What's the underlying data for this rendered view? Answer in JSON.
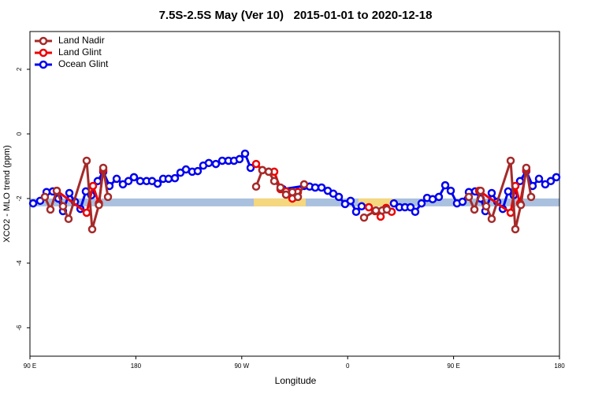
{
  "chart_data": {
    "type": "line",
    "title": "7.5S-2.5S May (Ver 10)   2015-01-01 to 2020-12-18",
    "x_label": "Longitude",
    "y_label": "XCO2 - MLO trend (ppm)",
    "xlim": [
      90,
      540
    ],
    "ylim": [
      -6.88,
      3.17
    ],
    "xticks": [
      {
        "value": 90,
        "label": "90 E"
      },
      {
        "value": 180,
        "label": "180"
      },
      {
        "value": 270,
        "label": "90 W"
      },
      {
        "value": 360,
        "label": "0"
      },
      {
        "value": 450,
        "label": "90 E"
      },
      {
        "value": 540,
        "label": "180"
      }
    ],
    "yticks": [
      2,
      0,
      -2,
      -4,
      -6
    ],
    "legend": "top-left",
    "bands": [
      {
        "value": -2.12,
        "xlim": [
          90,
          540
        ],
        "color": "#a9c0de"
      },
      {
        "value": -2.12,
        "xlim": [
          280.2,
          324.4
        ],
        "color": "#f5d77e"
      },
      {
        "value": -2.12,
        "xlim": [
          369.2,
          399.3
        ],
        "color": "#f5d77e"
      }
    ],
    "series": [
      {
        "name": "Land Nadir",
        "color": "#a52a2a",
        "x": [
          102.7,
          107.4,
          112.8,
          118.1,
          122.8,
          138.2,
          142.9,
          148.6,
          152.3,
          156.3,
          null,
          282.2,
          287.5,
          292.9,
          297.6,
          302.9,
          307.6,
          313.0,
          317.7,
          323.0,
          null,
          373.9,
          384.0,
          389.3,
          393.3,
          null,
          463.0,
          467.7,
          473.0,
          477.7,
          482.4,
          498.5,
          502.5,
          507.2,
          511.8,
          515.9
        ],
        "values": [
          -1.95,
          -2.34,
          -1.76,
          -2.24,
          -2.63,
          -0.83,
          -2.95,
          -2.2,
          -1.05,
          -1.95,
          null,
          -1.63,
          -1.12,
          -1.17,
          -1.46,
          -1.66,
          -1.88,
          -1.8,
          -1.95,
          -1.56,
          null,
          -2.59,
          -2.37,
          -2.37,
          -2.34,
          null,
          -1.95,
          -2.34,
          -1.76,
          -2.24,
          -2.63,
          -0.83,
          -2.95,
          -2.2,
          -1.05,
          -1.95
        ]
      },
      {
        "name": "Land Glint",
        "color": "#ee0000",
        "x": [
          112.8,
          138.2,
          143.6,
          148.6,
          152.3,
          null,
          282.2,
          287.5,
          292.9,
          297.6,
          302.9,
          307.6,
          313.0,
          317.7,
          null,
          378.0,
          383.3,
          388.0,
          392.7,
          397.4,
          null,
          471.7,
          498.5,
          502.5,
          506.5,
          511.8
        ],
        "values": [
          -1.76,
          -2.44,
          -1.61,
          -2.15,
          -1.12,
          null,
          -0.93,
          -1.12,
          -1.17,
          -1.17,
          -1.71,
          -1.78,
          -2.0,
          -1.8,
          null,
          -2.27,
          -2.39,
          -2.56,
          -2.29,
          -2.41,
          null,
          -1.76,
          -2.44,
          -1.61,
          -2.15,
          -1.12
        ]
      },
      {
        "name": "Ocean Glint",
        "color": "#0000ee",
        "x": [
          92.7,
          98.7,
          104.1,
          109.4,
          114.1,
          118.1,
          123.5,
          128.2,
          132.9,
          137.5,
          142.2,
          147.6,
          152.3,
          157.6,
          163.7,
          169.0,
          173.7,
          178.4,
          183.7,
          189.1,
          193.8,
          198.5,
          203.2,
          207.8,
          213.2,
          217.9,
          222.6,
          227.9,
          232.6,
          237.3,
          242.0,
          248.0,
          253.4,
          258.7,
          263.4,
          268.1,
          272.8,
          277.5,
          null,
          304.9,
          323.0,
          327.7,
          332.4,
          337.8,
          343.1,
          347.8,
          352.5,
          357.8,
          362.5,
          367.2,
          371.9,
          null,
          399.3,
          404.0,
          408.7,
          413.4,
          417.4,
          422.8,
          427.5,
          432.2,
          437.5,
          442.9,
          447.6,
          452.9,
          457.6,
          463.0,
          468.3,
          473.0,
          477.0,
          482.4,
          487.1,
          491.8,
          496.4,
          501.1,
          506.5,
          511.8,
          517.2,
          522.6,
          527.9,
          532.6,
          537.3
        ],
        "values": [
          -2.15,
          -2.07,
          -1.8,
          -1.78,
          -2.0,
          -2.39,
          -1.83,
          -2.1,
          -2.32,
          -1.78,
          -1.9,
          -1.46,
          -1.17,
          -1.61,
          -1.39,
          -1.56,
          -1.46,
          -1.34,
          -1.46,
          -1.46,
          -1.46,
          -1.54,
          -1.39,
          -1.39,
          -1.37,
          -1.2,
          -1.1,
          -1.17,
          -1.15,
          -0.98,
          -0.9,
          -0.93,
          -0.83,
          -0.83,
          -0.83,
          -0.78,
          -0.61,
          -1.05,
          null,
          -1.71,
          -1.61,
          -1.63,
          -1.66,
          -1.66,
          -1.76,
          -1.85,
          -1.95,
          -2.17,
          -2.07,
          -2.41,
          -2.24,
          null,
          -2.15,
          -2.27,
          -2.27,
          -2.27,
          -2.41,
          -2.15,
          -1.98,
          -2.02,
          -1.95,
          -1.59,
          -1.76,
          -2.15,
          -2.1,
          -1.8,
          -1.78,
          -2.0,
          -2.39,
          -1.83,
          -2.1,
          -2.32,
          -1.78,
          -1.9,
          -1.46,
          -1.15,
          -1.61,
          -1.39,
          -1.56,
          -1.46,
          -1.34
        ]
      }
    ]
  }
}
